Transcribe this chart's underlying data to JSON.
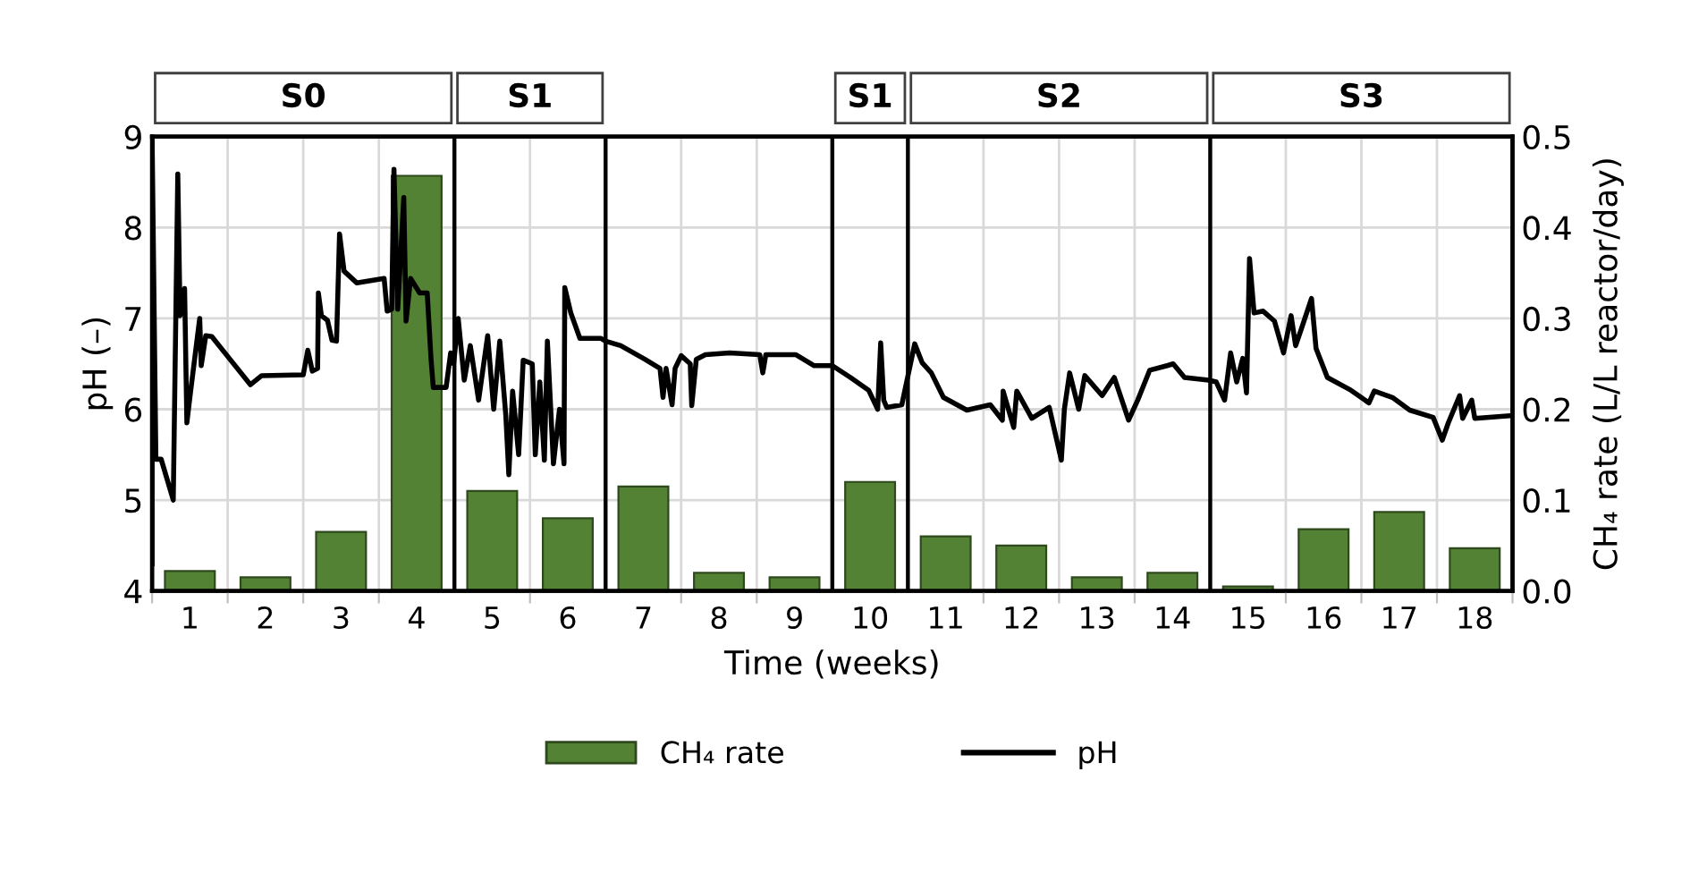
{
  "chart_data": {
    "type": "bar",
    "xlabel": "Time (weeks)",
    "ylabel": "pH (–)",
    "y2label": "CH₄ rate (L/L reactor/day)",
    "xlim": [
      0.5,
      18.5
    ],
    "xticks": [
      {
        "value": 0.5,
        "label": null
      },
      1,
      {
        "value": 1.5,
        "label": null
      },
      2,
      {
        "value": 2.5,
        "label": null
      },
      3,
      {
        "value": 3.5,
        "label": null
      },
      4,
      5,
      {
        "value": 5.5,
        "label": null
      },
      6,
      7,
      {
        "value": 7.5,
        "label": null
      },
      8,
      {
        "value": 8.5,
        "label": null
      },
      9,
      10,
      11,
      {
        "value": 11.5,
        "label": null
      },
      12,
      {
        "value": 12.5,
        "label": null
      },
      13,
      {
        "value": 13.5,
        "label": null
      },
      14,
      15,
      {
        "value": 15.5,
        "label": null
      },
      16,
      {
        "value": 16.5,
        "label": null
      },
      17,
      {
        "value": 17.5,
        "label": null
      },
      18,
      {
        "value": 18.5,
        "label": null
      }
    ],
    "ylim": [
      4,
      9
    ],
    "yticks": [
      4,
      5,
      6,
      7,
      8,
      9
    ],
    "y2lim": [
      0,
      0.5
    ],
    "y2ticks": [
      {
        "value": 0,
        "label": "0.0"
      },
      0.1,
      0.2,
      0.3,
      0.4,
      0.5
    ],
    "grid": true,
    "legend": "bottom",
    "series": [
      {
        "name": "CH₄ rate",
        "type": "bar",
        "axis": "y2",
        "color": "#548235",
        "x": [
          1,
          2,
          3,
          4,
          5,
          6,
          7,
          8,
          9,
          10,
          11,
          12,
          13,
          14,
          15,
          16,
          17,
          18
        ],
        "values": [
          0.022,
          0.015,
          0.065,
          0.457,
          0.11,
          0.08,
          0.115,
          0.02,
          0.015,
          0.12,
          0.06,
          0.05,
          0.015,
          0.02,
          0.005,
          0.068,
          0.087,
          0.047
        ]
      },
      {
        "name": "pH",
        "type": "line",
        "axis": "y",
        "color": "#000000",
        "marker": "none",
        "line_style": "solid",
        "x": [
          0.5,
          0.5,
          0.55,
          0.62,
          0.78,
          0.84,
          0.87,
          0.93,
          0.96,
          1.01,
          1.13,
          1.15,
          1.21,
          1.29,
          1.8,
          1.95,
          2.5,
          2.56,
          2.62,
          2.69,
          2.7,
          2.74,
          2.82,
          2.88,
          2.94,
          2.98,
          3.04,
          3.21,
          3.57,
          3.61,
          3.67,
          3.7,
          3.75,
          3.83,
          3.86,
          3.92,
          4.04,
          4.14,
          4.19,
          4.22,
          4.39,
          4.45,
          4.49,
          4.55,
          4.63,
          4.71,
          4.82,
          4.94,
          5.02,
          5.1,
          5.18,
          5.22,
          5.27,
          5.35,
          5.41,
          5.53,
          5.57,
          5.63,
          5.69,
          5.73,
          5.81,
          5.89,
          5.95,
          5.96,
          6.04,
          6.16,
          6.44,
          6.5,
          6.7,
          7.02,
          7.22,
          7.26,
          7.3,
          7.38,
          7.42,
          7.5,
          7.62,
          7.64,
          7.7,
          7.82,
          8.14,
          8.54,
          8.58,
          8.62,
          9.02,
          9.26,
          9.5,
          9.74,
          9.98,
          10.1,
          10.14,
          10.18,
          10.22,
          10.42,
          10.59,
          10.69,
          10.81,
          10.97,
          11.28,
          11.59,
          11.75,
          11.76,
          11.9,
          11.94,
          12.14,
          12.37,
          12.53,
          12.57,
          12.64,
          12.76,
          12.84,
          13.07,
          13.23,
          13.42,
          13.54,
          13.7,
          13.93,
          14.01,
          14.16,
          14.48,
          14.58,
          14.69,
          14.77,
          14.85,
          14.93,
          14.98,
          15.02,
          15.08,
          15.2,
          15.35,
          15.47,
          15.57,
          15.63,
          15.7,
          15.84,
          15.9,
          16.05,
          16.36,
          16.6,
          16.67,
          16.91,
          17.14,
          17.45,
          17.57,
          17.65,
          17.8,
          17.84,
          17.96,
          18.0,
          18.5
        ],
        "values": [
          4.3,
          9.0,
          5.45,
          5.45,
          5.0,
          8.59,
          7.03,
          7.33,
          5.85,
          6.2,
          7.0,
          6.48,
          6.81,
          6.8,
          6.27,
          6.37,
          6.38,
          6.65,
          6.42,
          6.45,
          7.28,
          7.03,
          6.98,
          6.76,
          6.75,
          7.93,
          7.52,
          7.39,
          7.44,
          7.08,
          7.1,
          8.64,
          7.1,
          8.33,
          6.97,
          7.44,
          7.28,
          7.28,
          6.56,
          6.24,
          6.24,
          6.62,
          6.5,
          7.0,
          6.32,
          6.7,
          6.1,
          6.81,
          6.0,
          6.75,
          5.93,
          5.28,
          6.2,
          5.5,
          6.54,
          6.5,
          5.5,
          6.3,
          5.44,
          6.75,
          5.4,
          6.0,
          5.4,
          7.34,
          7.06,
          6.78,
          6.78,
          6.75,
          6.7,
          6.55,
          6.45,
          6.13,
          6.45,
          6.05,
          6.45,
          6.59,
          6.5,
          6.04,
          6.55,
          6.6,
          6.62,
          6.6,
          6.4,
          6.6,
          6.6,
          6.48,
          6.48,
          6.35,
          6.21,
          6.0,
          6.73,
          6.1,
          6.02,
          6.05,
          6.72,
          6.51,
          6.4,
          6.13,
          5.99,
          6.05,
          5.88,
          6.2,
          5.8,
          6.2,
          5.9,
          6.02,
          5.44,
          6.0,
          6.4,
          6.0,
          6.37,
          6.15,
          6.35,
          5.88,
          6.1,
          6.43,
          6.48,
          6.5,
          6.35,
          6.32,
          6.3,
          6.1,
          6.62,
          6.3,
          6.56,
          6.18,
          7.66,
          7.06,
          7.08,
          6.97,
          6.62,
          7.03,
          6.7,
          6.87,
          7.22,
          6.67,
          6.35,
          6.21,
          6.07,
          6.2,
          6.13,
          5.99,
          5.91,
          5.66,
          5.85,
          6.15,
          5.9,
          6.1,
          5.9,
          5.93
        ]
      }
    ],
    "ref_lines": [
      {
        "axis": "x",
        "value": 4.5,
        "color": "#000000"
      },
      {
        "axis": "x",
        "value": 6.5,
        "color": "#000000"
      },
      {
        "axis": "x",
        "value": 9.5,
        "color": "#000000"
      },
      {
        "axis": "x",
        "value": 10.5,
        "color": "#000000"
      },
      {
        "axis": "x",
        "value": 14.5,
        "color": "#000000"
      }
    ],
    "annotations": [
      "S0",
      "S1",
      "S1",
      "S2",
      "S3"
    ]
  }
}
